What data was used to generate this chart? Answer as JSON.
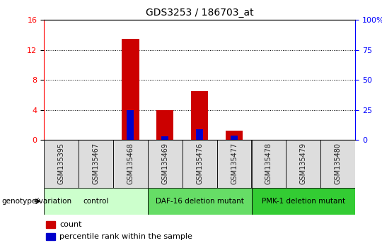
{
  "title": "GDS3253 / 186703_at",
  "samples": [
    "GSM135395",
    "GSM135467",
    "GSM135468",
    "GSM135469",
    "GSM135476",
    "GSM135477",
    "GSM135478",
    "GSM135479",
    "GSM135480"
  ],
  "count_values": [
    0,
    0,
    13.5,
    4.0,
    6.5,
    1.2,
    0,
    0,
    0
  ],
  "percentile_values": [
    0,
    0,
    25.0,
    3.0,
    9.0,
    3.5,
    0,
    0,
    0
  ],
  "ylim_left": [
    0,
    16
  ],
  "ylim_right": [
    0,
    100
  ],
  "yticks_left": [
    0,
    4,
    8,
    12,
    16
  ],
  "yticks_right": [
    0,
    25,
    50,
    75,
    100
  ],
  "groups": [
    {
      "label": "control",
      "start": 0,
      "end": 3,
      "color": "#ccffcc"
    },
    {
      "label": "DAF-16 deletion mutant",
      "start": 3,
      "end": 6,
      "color": "#66dd66"
    },
    {
      "label": "PMK-1 deletion mutant",
      "start": 6,
      "end": 9,
      "color": "#33cc33"
    }
  ],
  "bar_width": 0.5,
  "blue_bar_width": 0.2,
  "count_color": "#cc0000",
  "percentile_color": "#0000cc",
  "tick_label_color": "#222222",
  "background_color": "#ffffff",
  "genotype_label": "genotype/variation",
  "legend_count": "count",
  "legend_percentile": "percentile rank within the sample",
  "tick_box_color": "#dddddd"
}
